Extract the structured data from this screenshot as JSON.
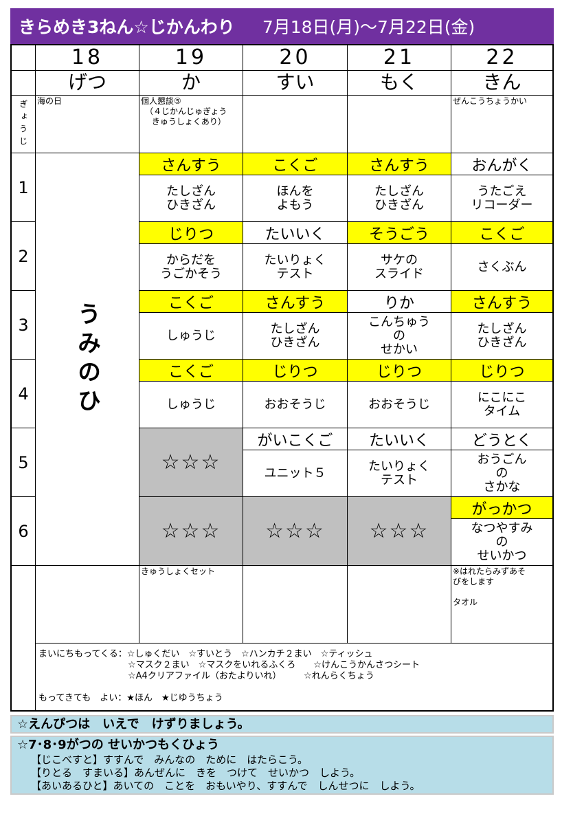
{
  "header": {
    "title": "きらめき3ねん☆じかんわり",
    "date_range": "7月18日(月)〜7月22日(金)",
    "color": "#7030a0"
  },
  "days": [
    {
      "date": "18",
      "weekday": "げつ",
      "event": "海の日"
    },
    {
      "date": "19",
      "weekday": "か",
      "event": "個人懇談⑤\n　（４じかんじゅぎょう\n　 きゅうしょくあり）"
    },
    {
      "date": "20",
      "weekday": "すい",
      "event": ""
    },
    {
      "date": "21",
      "weekday": "もく",
      "event": ""
    },
    {
      "date": "22",
      "weekday": "きん",
      "event": "ぜんこうちょうかい"
    }
  ],
  "event_label": "ぎょうじ",
  "monday_all_day": "うみのひ",
  "periods": [
    {
      "num": "1",
      "cells": [
        {
          "subject": "さんすう",
          "content": "たしざん\nひきざん",
          "hl": true
        },
        {
          "subject": "こくご",
          "content": "ほんを\nよもう",
          "hl": true
        },
        {
          "subject": "さんすう",
          "content": "たしざん\nひきざん",
          "hl": true
        },
        {
          "subject": "おんがく",
          "content": "うたごえ\nリコーダー",
          "hl": false
        }
      ]
    },
    {
      "num": "2",
      "cells": [
        {
          "subject": "じりつ",
          "content": "からだを\nうごかそう",
          "hl": true
        },
        {
          "subject": "たいいく",
          "content": "たいりょく\nテスト",
          "hl": false
        },
        {
          "subject": "そうごう",
          "content": "サケの\nスライド",
          "hl": true
        },
        {
          "subject": "こくご",
          "content": "さくぶん",
          "hl": true
        }
      ]
    },
    {
      "num": "3",
      "cells": [
        {
          "subject": "こくご",
          "content": "しゅうじ",
          "hl": true
        },
        {
          "subject": "さんすう",
          "content": "たしざん\nひきざん",
          "hl": true
        },
        {
          "subject": "りか",
          "content": "こんちゅう\nの\nせかい",
          "hl": false
        },
        {
          "subject": "さんすう",
          "content": "たしざん\nひきざん",
          "hl": true
        }
      ]
    },
    {
      "num": "4",
      "cells": [
        {
          "subject": "こくご",
          "content": "しゅうじ",
          "hl": true
        },
        {
          "subject": "じりつ",
          "content": "おおそうじ",
          "hl": true
        },
        {
          "subject": "じりつ",
          "content": "おおそうじ",
          "hl": true
        },
        {
          "subject": "じりつ",
          "content": "にこにこ\nタイム",
          "hl": true
        }
      ]
    },
    {
      "num": "5",
      "cells": [
        {
          "gray": "☆☆☆"
        },
        {
          "subject": "がいこくご",
          "content": "ユニット５",
          "hl": false
        },
        {
          "subject": "たいいく",
          "content": "たいりょく\nテスト",
          "hl": false
        },
        {
          "subject": "どうとく",
          "content": "おうごん\nの\nさかな",
          "hl": false
        }
      ]
    },
    {
      "num": "6",
      "cells": [
        {
          "gray": "☆☆☆"
        },
        {
          "gray": "☆☆☆"
        },
        {
          "gray": "☆☆☆"
        },
        {
          "subject": "がっかつ",
          "content": "なつやすみ\nの\nせいかつ",
          "hl": true
        }
      ]
    }
  ],
  "bottom": [
    "",
    "きゅうしょくセット",
    "",
    "",
    "※はれたらみずあそ\nびをします\n\nタオル"
  ],
  "notes": {
    "line1": "まいにちもってくる：☆しゅくだい　☆すいとう　☆ハンカチ２まい　☆ティッシュ",
    "line2": "　　　　　　　　　　☆マスク２まい　☆マスクをいれるふくろ　　☆けんこうかんさつシート",
    "line3": "　　　　　　　　　　☆A4クリアファイル（おたよりいれ）　　　☆れんらくちょう",
    "line4": "もってきても　よい：★ほん　★じゆうちょう"
  },
  "footer": {
    "pencil": "☆えんぴつは　いえで　けずりましょう。",
    "goals_title": "☆7･8･9がつの せいかつもくひょう",
    "goals": [
      "【じこべすと】すすんで　みんなの　ために　はたらこう。",
      "【りとる　すまいる】あんぜんに　きを　つけて　せいかつ　しよう。",
      "【あいあるひと】あいての　ことを　おもいやり、すすんで　しんせつに　しよう。"
    ],
    "box_color": "#b7dde8"
  },
  "colors": {
    "highlight": "#ffff00",
    "holiday_gray": "#c0c0c0"
  }
}
